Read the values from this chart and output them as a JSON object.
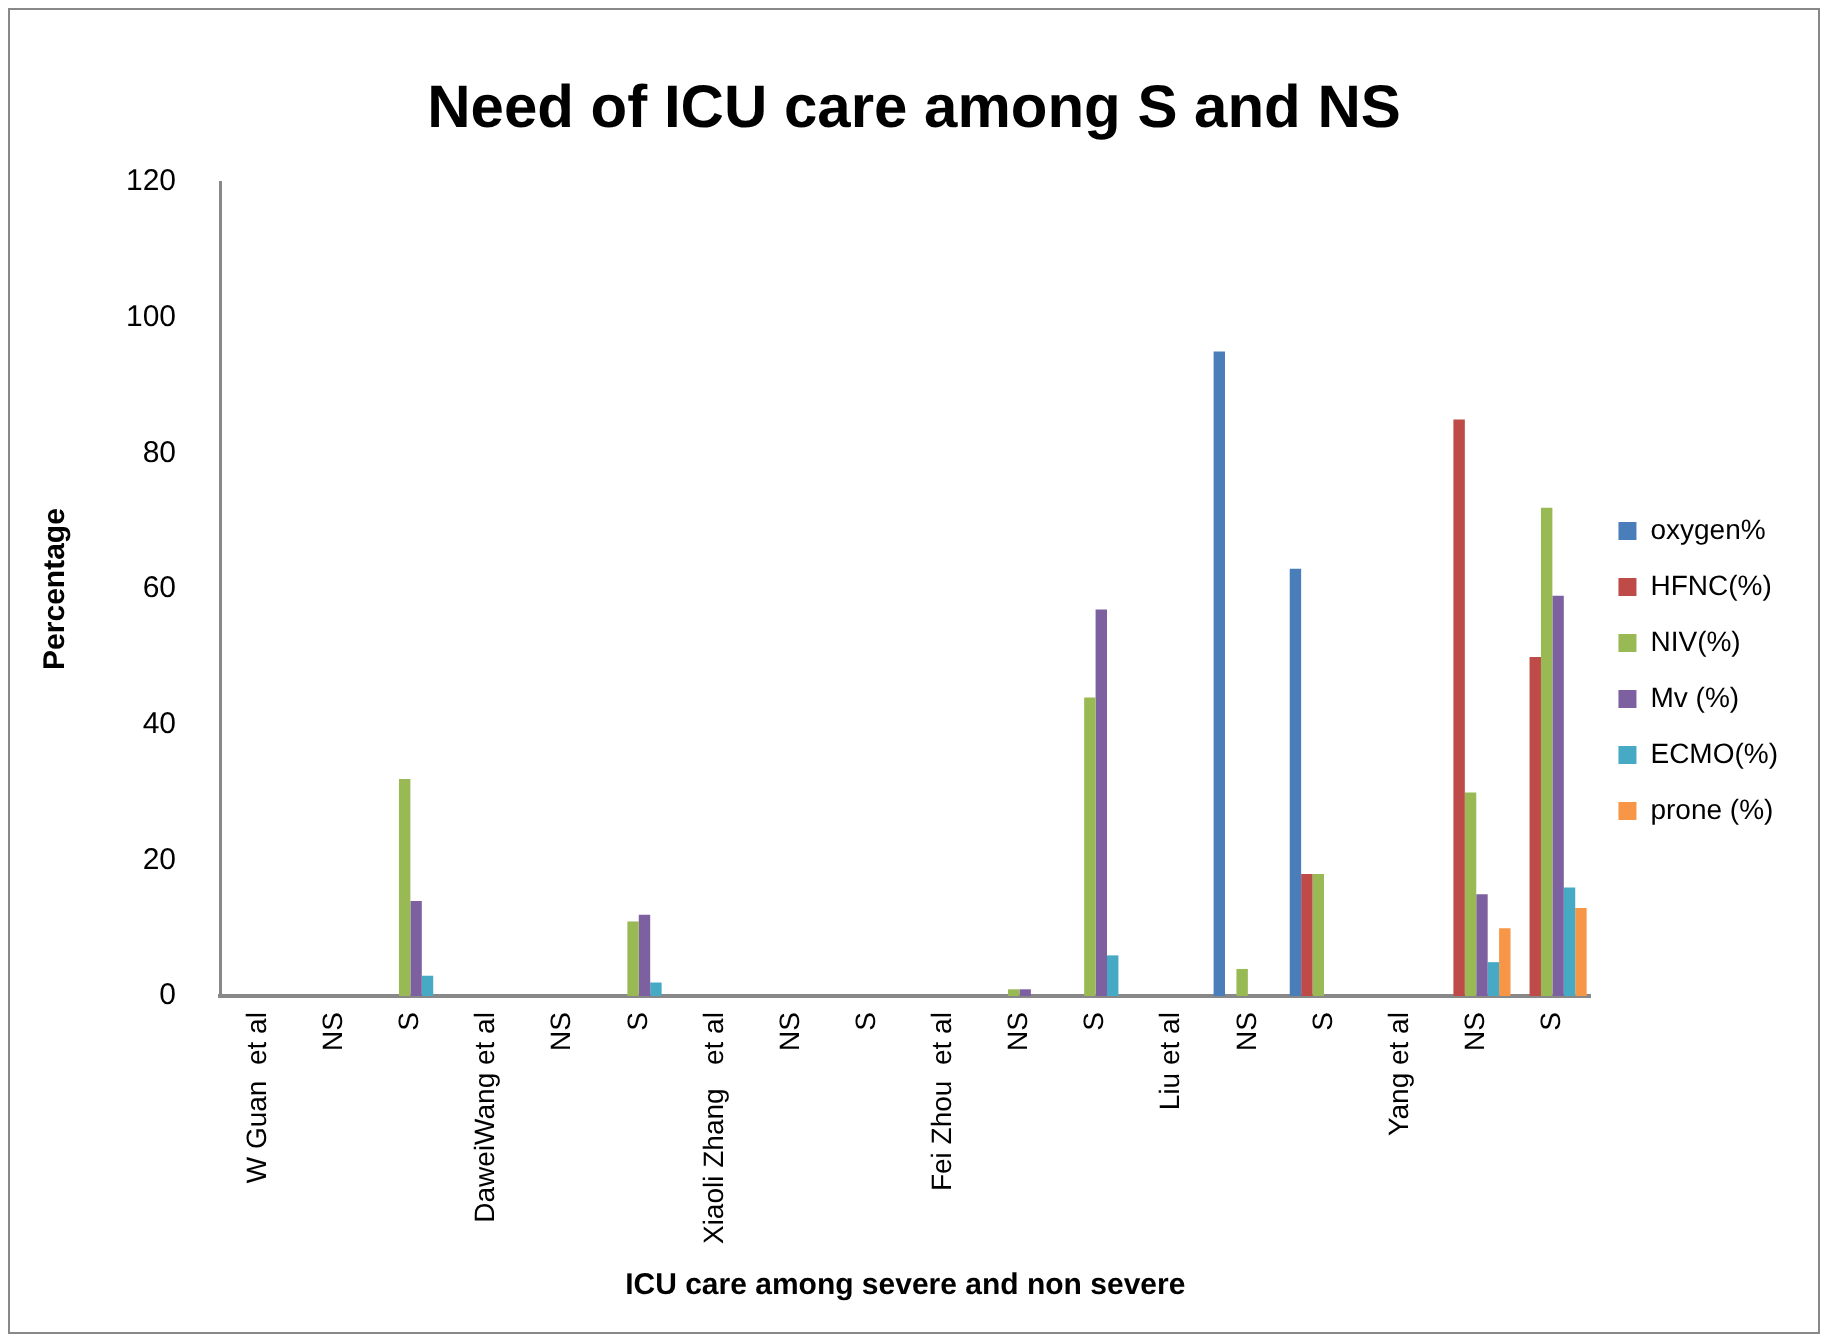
{
  "chart_data": {
    "type": "bar",
    "title": "Need of ICU care among S and NS",
    "xlabel": "ICU care among severe and non severe",
    "ylabel": "Percentage",
    "categories": [
      "W Guan  et al",
      "NS",
      "S",
      "DaweiWang et al",
      "NS",
      "S",
      "Xiaoli Zhang   et al",
      "NS",
      "S",
      "Fei Zhou  et al",
      "NS",
      "S",
      "Liu et al",
      "NS",
      "S",
      "Yang et al",
      "NS",
      "S"
    ],
    "series": [
      {
        "name": "oxygen%",
        "color": "#4a7ebb",
        "values": [
          null,
          null,
          null,
          null,
          null,
          null,
          null,
          null,
          null,
          null,
          null,
          null,
          null,
          95,
          63,
          null,
          null,
          null
        ]
      },
      {
        "name": "HFNC(%)",
        "color": "#be4b48",
        "values": [
          null,
          null,
          null,
          null,
          null,
          null,
          null,
          null,
          null,
          null,
          null,
          null,
          null,
          null,
          18,
          null,
          85,
          50
        ]
      },
      {
        "name": "NIV(%)",
        "color": "#98b954",
        "values": [
          null,
          null,
          32,
          null,
          null,
          11,
          null,
          null,
          null,
          null,
          1,
          44,
          null,
          4,
          18,
          null,
          30,
          72
        ]
      },
      {
        "name": "Mv (%)",
        "color": "#7d60a0",
        "values": [
          null,
          null,
          14,
          null,
          null,
          12,
          null,
          null,
          null,
          null,
          1,
          57,
          null,
          null,
          null,
          null,
          15,
          59
        ]
      },
      {
        "name": "ECMO(%)",
        "color": "#46aac5",
        "values": [
          null,
          null,
          3,
          null,
          null,
          2,
          null,
          null,
          null,
          null,
          null,
          6,
          null,
          null,
          null,
          null,
          5,
          16
        ]
      },
      {
        "name": "prone (%)",
        "color": "#f79646",
        "values": [
          null,
          null,
          null,
          null,
          null,
          null,
          null,
          null,
          null,
          null,
          null,
          null,
          null,
          null,
          null,
          null,
          10,
          13
        ]
      }
    ],
    "ylim": [
      0,
      120
    ],
    "yticks": [
      0,
      20,
      40,
      60,
      80,
      100,
      120
    ],
    "grid": false,
    "legend": "right"
  }
}
